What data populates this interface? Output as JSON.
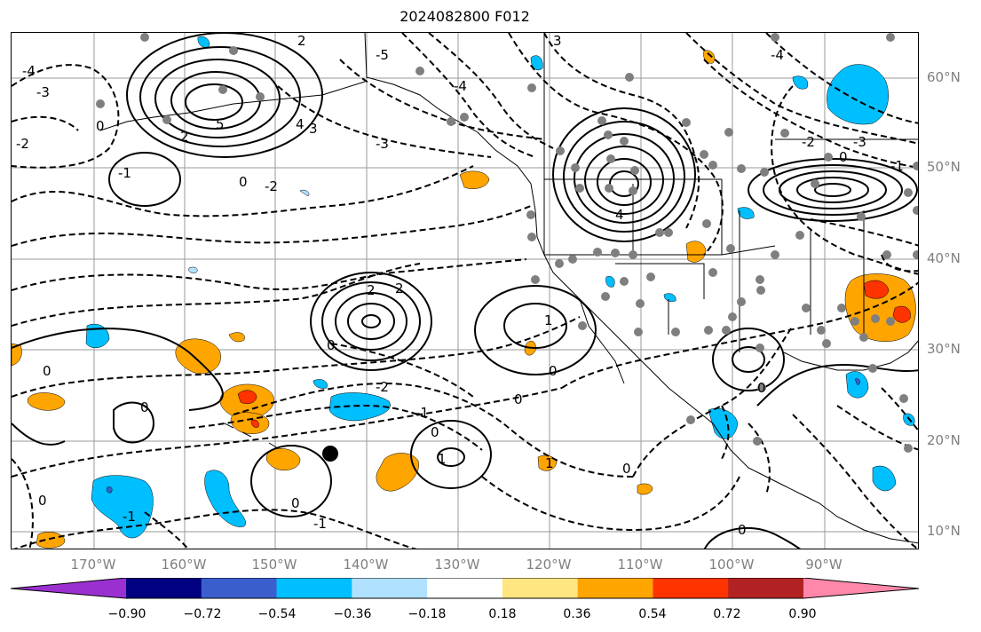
{
  "title": "2024082800 F012",
  "lon_labels": [
    "170°W",
    "160°W",
    "150°W",
    "140°W",
    "130°W",
    "120°W",
    "110°W",
    "100°W",
    "90°W"
  ],
  "lat_labels": [
    "60°N",
    "50°N",
    "40°N",
    "30°N",
    "20°N",
    "10°N"
  ],
  "colorbar": {
    "labels": [
      "−0.90",
      "−0.72",
      "−0.54",
      "−0.36",
      "−0.18",
      "0.18",
      "0.36",
      "0.54",
      "0.72",
      "0.90"
    ],
    "colors": [
      "#9b30d0",
      "#000080",
      "#3a5fcd",
      "#00bfff",
      "#b0e2ff",
      "#ffffff",
      "#ffe680",
      "#ffa500",
      "#ff3300",
      "#b22222",
      "#ff88aa"
    ]
  },
  "contour_labels": {
    "c1": "-1",
    "c2": "-2",
    "c3": "-3",
    "c4": "-4",
    "c5": "-5",
    "p0": "0",
    "p1": "1",
    "p2": "2",
    "p3": "3",
    "p4": "4",
    "p5": "5"
  }
}
